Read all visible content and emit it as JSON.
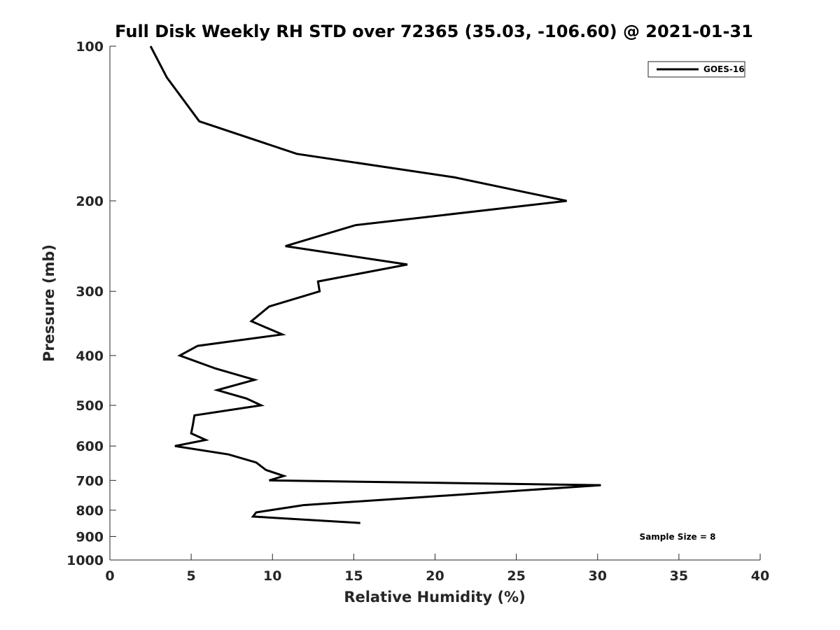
{
  "chart_data": {
    "type": "line",
    "title": "Full Disk Weekly RH STD over 72365 (35.03, -106.60) @ 2021-01-31",
    "xlabel": "Relative Humidity (%)",
    "ylabel": "Pressure (mb)",
    "xlim": [
      0,
      40
    ],
    "ylim": [
      100,
      1000
    ],
    "y_scale": "log",
    "y_reversed": true,
    "x_ticks": [
      "0",
      "5",
      "10",
      "15",
      "20",
      "25",
      "30",
      "35",
      "40"
    ],
    "y_ticks": [
      "100",
      "200",
      "300",
      "400",
      "500",
      "600",
      "700",
      "800",
      "900",
      "1000"
    ],
    "grid": false,
    "legend_position": "top-right",
    "annotation": "Sample Size = 8",
    "series": [
      {
        "name": "GOES-16",
        "color": "#000000",
        "points": [
          [
            2.5,
            100
          ],
          [
            3.5,
            115
          ],
          [
            5.5,
            140
          ],
          [
            11.5,
            162
          ],
          [
            21.2,
            180
          ],
          [
            28.1,
            200
          ],
          [
            15.1,
            223
          ],
          [
            10.8,
            245
          ],
          [
            18.3,
            266
          ],
          [
            12.8,
            287
          ],
          [
            12.9,
            300
          ],
          [
            9.8,
            321
          ],
          [
            8.7,
            343
          ],
          [
            10.6,
            364
          ],
          [
            5.4,
            383
          ],
          [
            4.3,
            400
          ],
          [
            6.5,
            424
          ],
          [
            8.9,
            446
          ],
          [
            6.6,
            467
          ],
          [
            8.4,
            485
          ],
          [
            9.3,
            500
          ],
          [
            5.2,
            523
          ],
          [
            5.1,
            547
          ],
          [
            5.0,
            567
          ],
          [
            5.9,
            584
          ],
          [
            4.0,
            600
          ],
          [
            7.3,
            623
          ],
          [
            9.0,
            646
          ],
          [
            9.6,
            668
          ],
          [
            10.7,
            686
          ],
          [
            9.8,
            700
          ],
          [
            30.2,
            715
          ],
          [
            11.9,
            782
          ],
          [
            9.0,
            808
          ],
          [
            8.8,
            823
          ],
          [
            15.4,
            847
          ]
        ]
      }
    ]
  }
}
